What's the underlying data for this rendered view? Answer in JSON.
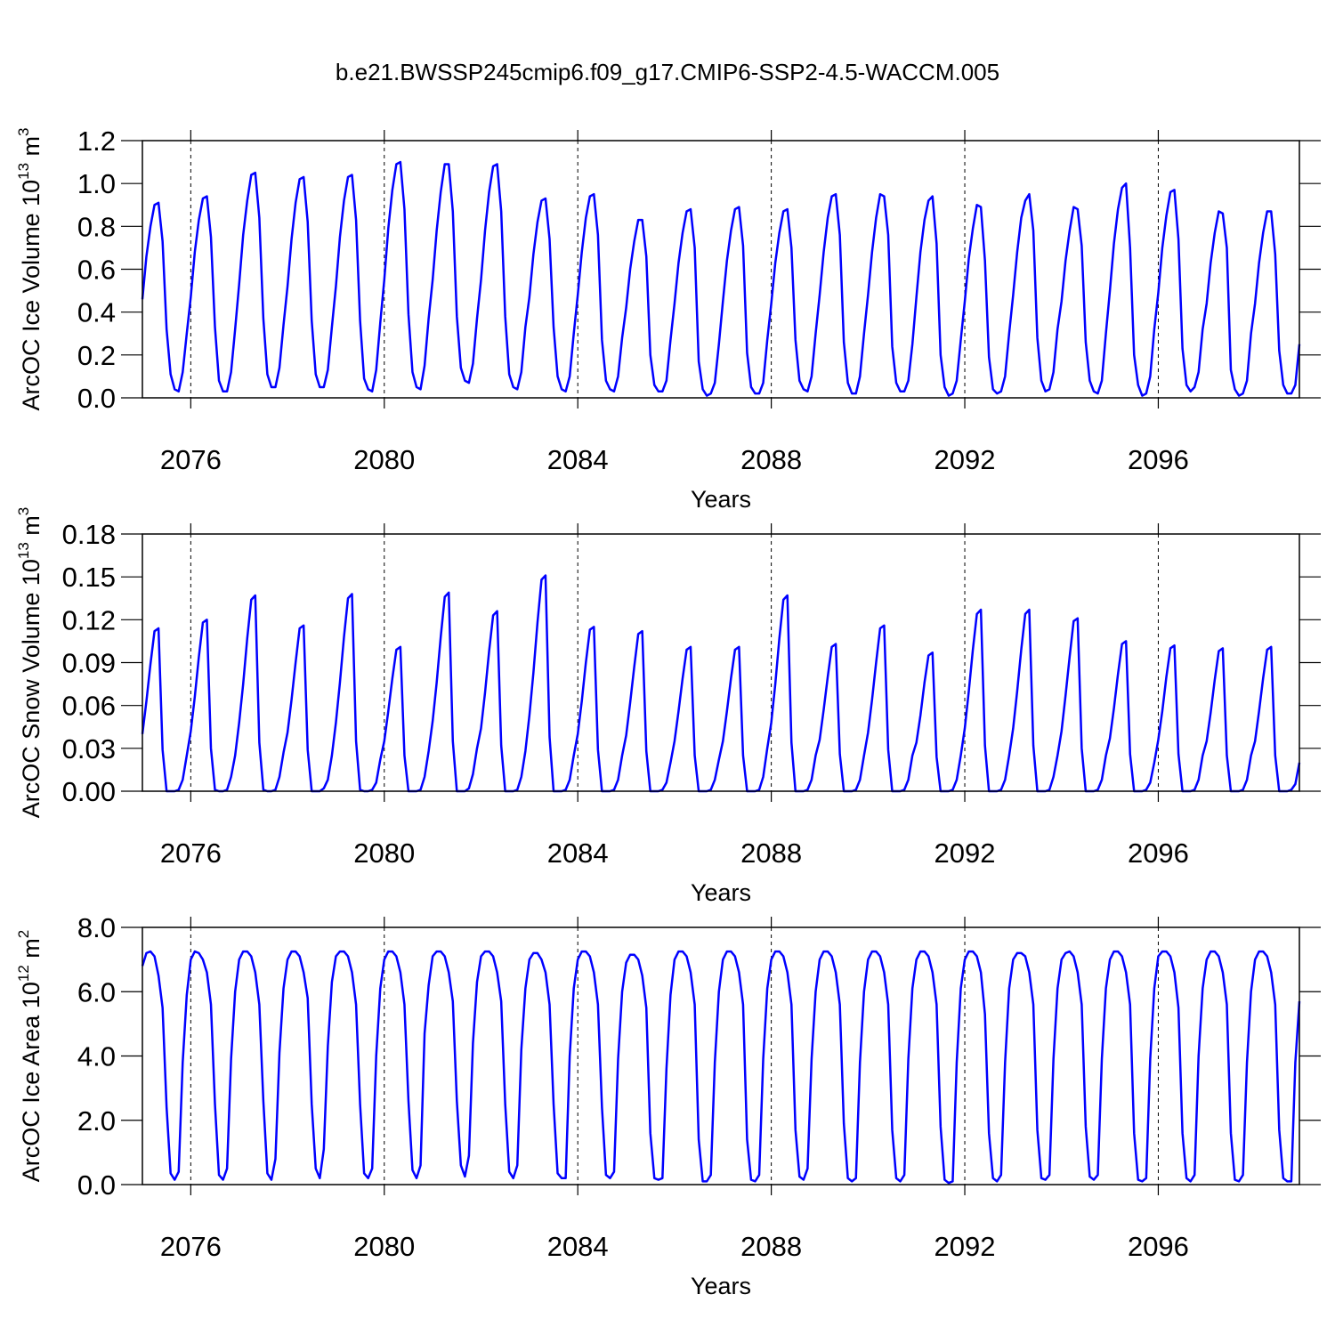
{
  "title": "b.e21.BWSSP245cmip6.f09_g17.CMIP6-SSP2-4.5-WACCM.005",
  "xlim": [
    2075,
    2098.917
  ],
  "xticks": [
    2076,
    2080,
    2084,
    2088,
    2092,
    2096
  ],
  "xlabel": "Years",
  "x": [
    2075,
    2075.083,
    2075.167,
    2075.25,
    2075.333,
    2075.417,
    2075.5,
    2075.583,
    2075.667,
    2075.75,
    2075.833,
    2075.917,
    2076,
    2076.083,
    2076.167,
    2076.25,
    2076.333,
    2076.417,
    2076.5,
    2076.583,
    2076.667,
    2076.75,
    2076.833,
    2076.917,
    2077,
    2077.083,
    2077.167,
    2077.25,
    2077.333,
    2077.417,
    2077.5,
    2077.583,
    2077.667,
    2077.75,
    2077.833,
    2077.917,
    2078,
    2078.083,
    2078.167,
    2078.25,
    2078.333,
    2078.417,
    2078.5,
    2078.583,
    2078.667,
    2078.75,
    2078.833,
    2078.917,
    2079,
    2079.083,
    2079.167,
    2079.25,
    2079.333,
    2079.417,
    2079.5,
    2079.583,
    2079.667,
    2079.75,
    2079.833,
    2079.917,
    2080,
    2080.083,
    2080.167,
    2080.25,
    2080.333,
    2080.417,
    2080.5,
    2080.583,
    2080.667,
    2080.75,
    2080.833,
    2080.917,
    2081,
    2081.083,
    2081.167,
    2081.25,
    2081.333,
    2081.417,
    2081.5,
    2081.583,
    2081.667,
    2081.75,
    2081.833,
    2081.917,
    2082,
    2082.083,
    2082.167,
    2082.25,
    2082.333,
    2082.417,
    2082.5,
    2082.583,
    2082.667,
    2082.75,
    2082.833,
    2082.917,
    2083,
    2083.083,
    2083.167,
    2083.25,
    2083.333,
    2083.417,
    2083.5,
    2083.583,
    2083.667,
    2083.75,
    2083.833,
    2083.917,
    2084,
    2084.083,
    2084.167,
    2084.25,
    2084.333,
    2084.417,
    2084.5,
    2084.583,
    2084.667,
    2084.75,
    2084.833,
    2084.917,
    2085,
    2085.083,
    2085.167,
    2085.25,
    2085.333,
    2085.417,
    2085.5,
    2085.583,
    2085.667,
    2085.75,
    2085.833,
    2085.917,
    2086,
    2086.083,
    2086.167,
    2086.25,
    2086.333,
    2086.417,
    2086.5,
    2086.583,
    2086.667,
    2086.75,
    2086.833,
    2086.917,
    2087,
    2087.083,
    2087.167,
    2087.25,
    2087.333,
    2087.417,
    2087.5,
    2087.583,
    2087.667,
    2087.75,
    2087.833,
    2087.917,
    2088,
    2088.083,
    2088.167,
    2088.25,
    2088.333,
    2088.417,
    2088.5,
    2088.583,
    2088.667,
    2088.75,
    2088.833,
    2088.917,
    2089,
    2089.083,
    2089.167,
    2089.25,
    2089.333,
    2089.417,
    2089.5,
    2089.583,
    2089.667,
    2089.75,
    2089.833,
    2089.917,
    2090,
    2090.083,
    2090.167,
    2090.25,
    2090.333,
    2090.417,
    2090.5,
    2090.583,
    2090.667,
    2090.75,
    2090.833,
    2090.917,
    2091,
    2091.083,
    2091.167,
    2091.25,
    2091.333,
    2091.417,
    2091.5,
    2091.583,
    2091.667,
    2091.75,
    2091.833,
    2091.917,
    2092,
    2092.083,
    2092.167,
    2092.25,
    2092.333,
    2092.417,
    2092.5,
    2092.583,
    2092.667,
    2092.75,
    2092.833,
    2092.917,
    2093,
    2093.083,
    2093.167,
    2093.25,
    2093.333,
    2093.417,
    2093.5,
    2093.583,
    2093.667,
    2093.75,
    2093.833,
    2093.917,
    2094,
    2094.083,
    2094.167,
    2094.25,
    2094.333,
    2094.417,
    2094.5,
    2094.583,
    2094.667,
    2094.75,
    2094.833,
    2094.917,
    2095,
    2095.083,
    2095.167,
    2095.25,
    2095.333,
    2095.417,
    2095.5,
    2095.583,
    2095.667,
    2095.75,
    2095.833,
    2095.917,
    2096,
    2096.083,
    2096.167,
    2096.25,
    2096.333,
    2096.417,
    2096.5,
    2096.583,
    2096.667,
    2096.75,
    2096.833,
    2096.917,
    2097,
    2097.083,
    2097.167,
    2097.25,
    2097.333,
    2097.417,
    2097.5,
    2097.583,
    2097.667,
    2097.75,
    2097.833,
    2097.917,
    2098,
    2098.083,
    2098.167,
    2098.25,
    2098.333,
    2098.417,
    2098.5,
    2098.583,
    2098.667,
    2098.75,
    2098.833,
    2098.917
  ],
  "chart_data": [
    {
      "type": "line",
      "color": "#0000ff",
      "ylabel": {
        "text": "ArcOC Ice Volume 10",
        "exp": "13",
        "unit": " m",
        "unit_exp": "3"
      },
      "ylim": [
        0,
        1.2
      ],
      "yticks": [
        {
          "value": 0,
          "label": "0.0"
        },
        {
          "value": 0.2,
          "label": "0.2"
        },
        {
          "value": 0.4,
          "label": "0.4"
        },
        {
          "value": 0.6,
          "label": "0.6"
        },
        {
          "value": 0.8,
          "label": "0.8"
        },
        {
          "value": 1,
          "label": "1.0"
        },
        {
          "value": 1.2,
          "label": "1.2"
        }
      ],
      "values": [
        0.46,
        0.66,
        0.8,
        0.9,
        0.91,
        0.73,
        0.32,
        0.11,
        0.04,
        0.03,
        0.12,
        0.3,
        0.47,
        0.68,
        0.83,
        0.93,
        0.94,
        0.75,
        0.33,
        0.08,
        0.03,
        0.03,
        0.12,
        0.32,
        0.53,
        0.76,
        0.92,
        1.04,
        1.05,
        0.84,
        0.37,
        0.11,
        0.05,
        0.05,
        0.14,
        0.34,
        0.52,
        0.74,
        0.91,
        1.02,
        1.03,
        0.82,
        0.36,
        0.11,
        0.05,
        0.05,
        0.13,
        0.33,
        0.52,
        0.75,
        0.92,
        1.03,
        1.04,
        0.83,
        0.36,
        0.09,
        0.04,
        0.03,
        0.13,
        0.35,
        0.55,
        0.79,
        0.97,
        1.09,
        1.1,
        0.88,
        0.39,
        0.12,
        0.05,
        0.04,
        0.15,
        0.37,
        0.55,
        0.78,
        0.96,
        1.09,
        1.09,
        0.87,
        0.38,
        0.14,
        0.08,
        0.07,
        0.16,
        0.37,
        0.55,
        0.78,
        0.96,
        1.08,
        1.09,
        0.87,
        0.38,
        0.11,
        0.05,
        0.04,
        0.12,
        0.33,
        0.47,
        0.67,
        0.82,
        0.92,
        0.93,
        0.74,
        0.33,
        0.1,
        0.04,
        0.03,
        0.1,
        0.3,
        0.48,
        0.68,
        0.84,
        0.94,
        0.95,
        0.76,
        0.27,
        0.08,
        0.04,
        0.03,
        0.1,
        0.28,
        0.42,
        0.6,
        0.73,
        0.83,
        0.83,
        0.66,
        0.2,
        0.06,
        0.03,
        0.03,
        0.08,
        0.27,
        0.44,
        0.63,
        0.77,
        0.87,
        0.88,
        0.7,
        0.17,
        0.04,
        0.01,
        0.02,
        0.07,
        0.25,
        0.45,
        0.64,
        0.78,
        0.88,
        0.89,
        0.71,
        0.21,
        0.05,
        0.02,
        0.02,
        0.07,
        0.27,
        0.44,
        0.63,
        0.77,
        0.87,
        0.88,
        0.7,
        0.27,
        0.08,
        0.04,
        0.03,
        0.1,
        0.3,
        0.48,
        0.68,
        0.84,
        0.94,
        0.95,
        0.76,
        0.26,
        0.07,
        0.02,
        0.02,
        0.1,
        0.3,
        0.48,
        0.68,
        0.84,
        0.95,
        0.94,
        0.76,
        0.24,
        0.07,
        0.03,
        0.03,
        0.08,
        0.25,
        0.47,
        0.68,
        0.83,
        0.92,
        0.94,
        0.72,
        0.2,
        0.05,
        0.01,
        0.02,
        0.08,
        0.27,
        0.45,
        0.65,
        0.79,
        0.9,
        0.89,
        0.64,
        0.19,
        0.04,
        0.02,
        0.03,
        0.1,
        0.3,
        0.48,
        0.68,
        0.84,
        0.92,
        0.95,
        0.78,
        0.28,
        0.08,
        0.03,
        0.04,
        0.12,
        0.32,
        0.45,
        0.64,
        0.78,
        0.89,
        0.88,
        0.71,
        0.26,
        0.08,
        0.03,
        0.02,
        0.08,
        0.3,
        0.5,
        0.72,
        0.88,
        0.98,
        1.0,
        0.7,
        0.2,
        0.06,
        0.01,
        0.02,
        0.1,
        0.32,
        0.49,
        0.7,
        0.85,
        0.96,
        0.97,
        0.74,
        0.23,
        0.06,
        0.03,
        0.05,
        0.12,
        0.32,
        0.44,
        0.63,
        0.77,
        0.87,
        0.86,
        0.7,
        0.13,
        0.04,
        0.01,
        0.02,
        0.08,
        0.3,
        0.44,
        0.63,
        0.77,
        0.87,
        0.87,
        0.67,
        0.22,
        0.06,
        0.02,
        0.02,
        0.06,
        0.25
      ]
    },
    {
      "type": "line",
      "color": "#0000ff",
      "ylabel": {
        "text": "ArcOC Snow Volume 10",
        "exp": "13",
        "unit": " m",
        "unit_exp": "3"
      },
      "ylim": [
        0,
        0.18
      ],
      "yticks": [
        {
          "value": 0,
          "label": "0.00"
        },
        {
          "value": 0.03,
          "label": "0.03"
        },
        {
          "value": 0.06,
          "label": "0.06"
        },
        {
          "value": 0.09,
          "label": "0.09"
        },
        {
          "value": 0.12,
          "label": "0.12"
        },
        {
          "value": 0.15,
          "label": "0.15"
        },
        {
          "value": 0.18,
          "label": "0.18"
        }
      ],
      "values": [
        0.04,
        0.063,
        0.089,
        0.112,
        0.114,
        0.029,
        0,
        0,
        0,
        0.001,
        0.008,
        0.025,
        0.042,
        0.066,
        0.094,
        0.118,
        0.12,
        0.03,
        0.001,
        0,
        0,
        0.001,
        0.01,
        0.025,
        0.048,
        0.075,
        0.107,
        0.134,
        0.137,
        0.034,
        0.001,
        0,
        0,
        0.001,
        0.01,
        0.027,
        0.041,
        0.064,
        0.09,
        0.114,
        0.116,
        0.029,
        0,
        0,
        0,
        0.002,
        0.008,
        0.025,
        0.048,
        0.076,
        0.108,
        0.135,
        0.138,
        0.035,
        0.001,
        0,
        0,
        0.001,
        0.006,
        0.022,
        0.035,
        0.056,
        0.079,
        0.099,
        0.101,
        0.025,
        0,
        0,
        0,
        0.001,
        0.01,
        0.028,
        0.049,
        0.076,
        0.108,
        0.136,
        0.139,
        0.035,
        0,
        0,
        0,
        0.002,
        0.012,
        0.03,
        0.044,
        0.069,
        0.098,
        0.123,
        0.126,
        0.032,
        0,
        0,
        0,
        0.001,
        0.01,
        0.028,
        0.053,
        0.083,
        0.118,
        0.148,
        0.151,
        0.038,
        0,
        0,
        0,
        0.001,
        0.008,
        0.025,
        0.04,
        0.063,
        0.09,
        0.113,
        0.115,
        0.029,
        0,
        0,
        0,
        0.001,
        0.008,
        0.025,
        0.039,
        0.062,
        0.087,
        0.11,
        0.112,
        0.028,
        0,
        0,
        0,
        0.001,
        0.006,
        0.02,
        0.035,
        0.056,
        0.079,
        0.099,
        0.101,
        0.025,
        0,
        0,
        0,
        0.001,
        0.008,
        0.022,
        0.035,
        0.056,
        0.079,
        0.099,
        0.101,
        0.025,
        0,
        0,
        0,
        0.001,
        0.01,
        0.03,
        0.048,
        0.075,
        0.107,
        0.134,
        0.137,
        0.034,
        0,
        0,
        0,
        0.001,
        0.008,
        0.025,
        0.036,
        0.057,
        0.08,
        0.101,
        0.103,
        0.026,
        0,
        0,
        0,
        0.001,
        0.008,
        0.025,
        0.041,
        0.064,
        0.09,
        0.114,
        0.116,
        0.029,
        0,
        0,
        0,
        0.001,
        0.008,
        0.025,
        0.034,
        0.053,
        0.076,
        0.095,
        0.097,
        0.024,
        0,
        0,
        0,
        0.001,
        0.008,
        0.025,
        0.044,
        0.07,
        0.099,
        0.124,
        0.127,
        0.032,
        0,
        0,
        0,
        0.001,
        0.008,
        0.025,
        0.044,
        0.07,
        0.099,
        0.124,
        0.127,
        0.032,
        0,
        0,
        0,
        0.001,
        0.01,
        0.025,
        0.042,
        0.067,
        0.094,
        0.119,
        0.121,
        0.03,
        0,
        0,
        0,
        0.001,
        0.008,
        0.025,
        0.037,
        0.058,
        0.082,
        0.103,
        0.105,
        0.026,
        0,
        0,
        0,
        0.001,
        0.006,
        0.02,
        0.036,
        0.056,
        0.08,
        0.1,
        0.102,
        0.026,
        0,
        0,
        0,
        0.001,
        0.008,
        0.025,
        0.035,
        0.055,
        0.078,
        0.098,
        0.1,
        0.025,
        0,
        0,
        0,
        0.001,
        0.008,
        0.025,
        0.035,
        0.056,
        0.079,
        0.099,
        0.101,
        0.025,
        0,
        0,
        0,
        0.001,
        0.005,
        0.02
      ]
    },
    {
      "type": "line",
      "color": "#0000ff",
      "ylabel": {
        "text": "ArcOC Ice Area 10",
        "exp": "12",
        "unit": " m",
        "unit_exp": "2"
      },
      "ylim": [
        0,
        8
      ],
      "yticks": [
        {
          "value": 0,
          "label": "0.0"
        },
        {
          "value": 2,
          "label": "2.0"
        },
        {
          "value": 4,
          "label": "4.0"
        },
        {
          "value": 6,
          "label": "6.0"
        },
        {
          "value": 8,
          "label": "8.0"
        }
      ],
      "values": [
        6.8,
        7.2,
        7.25,
        7.1,
        6.5,
        5.5,
        2.4,
        0.35,
        0.15,
        0.4,
        3.8,
        5.9,
        7.0,
        7.25,
        7.2,
        7.0,
        6.6,
        5.6,
        2.5,
        0.3,
        0.15,
        0.5,
        3.9,
        6.0,
        7.0,
        7.25,
        7.25,
        7.1,
        6.6,
        5.6,
        2.6,
        0.35,
        0.15,
        0.8,
        4.1,
        6.1,
        7.0,
        7.25,
        7.25,
        7.1,
        6.6,
        5.8,
        2.5,
        0.5,
        0.2,
        1.1,
        4.3,
        6.3,
        7.1,
        7.25,
        7.25,
        7.1,
        6.6,
        5.6,
        2.5,
        0.35,
        0.2,
        0.5,
        4.0,
        6.1,
        7.0,
        7.25,
        7.25,
        7.1,
        6.6,
        5.6,
        2.6,
        0.45,
        0.2,
        0.6,
        4.7,
        6.2,
        7.1,
        7.25,
        7.25,
        7.1,
        6.6,
        5.7,
        2.6,
        0.6,
        0.25,
        0.9,
        4.4,
        6.3,
        7.1,
        7.25,
        7.25,
        7.1,
        6.6,
        5.7,
        2.5,
        0.4,
        0.2,
        0.6,
        4.2,
        6.1,
        7.0,
        7.2,
        7.2,
        7.0,
        6.6,
        5.6,
        2.5,
        0.35,
        0.2,
        0.2,
        4.0,
        6.1,
        7.0,
        7.25,
        7.25,
        7.1,
        6.6,
        5.6,
        2.4,
        0.3,
        0.2,
        0.4,
        3.9,
        6.0,
        6.9,
        7.15,
        7.15,
        7.0,
        6.5,
        5.5,
        1.6,
        0.2,
        0.15,
        0.2,
        3.6,
        5.9,
        7.0,
        7.25,
        7.25,
        7.1,
        6.6,
        5.6,
        1.4,
        0.1,
        0.1,
        0.3,
        3.8,
        6.0,
        7.0,
        7.25,
        7.25,
        7.1,
        6.6,
        5.6,
        1.4,
        0.15,
        0.1,
        0.3,
        3.9,
        6.1,
        7.0,
        7.25,
        7.25,
        7.1,
        6.6,
        5.6,
        1.7,
        0.25,
        0.15,
        0.5,
        3.9,
        6.0,
        7.0,
        7.25,
        7.25,
        7.1,
        6.6,
        5.6,
        1.9,
        0.2,
        0.1,
        0.2,
        3.8,
        6.0,
        7.0,
        7.25,
        7.25,
        7.1,
        6.6,
        5.6,
        1.7,
        0.2,
        0.1,
        0.3,
        3.9,
        6.1,
        7.0,
        7.25,
        7.25,
        7.1,
        6.6,
        5.6,
        1.8,
        0.15,
        0.05,
        0.1,
        3.8,
        6.1,
        7.0,
        7.25,
        7.25,
        7.1,
        6.6,
        5.3,
        1.6,
        0.2,
        0.1,
        0.3,
        3.8,
        6.1,
        7.0,
        7.2,
        7.2,
        7.1,
        6.6,
        5.6,
        1.7,
        0.2,
        0.15,
        0.3,
        3.9,
        6.1,
        7.0,
        7.2,
        7.25,
        7.1,
        6.6,
        5.6,
        1.8,
        0.25,
        0.15,
        0.3,
        3.9,
        6.1,
        7.0,
        7.25,
        7.25,
        7.1,
        6.6,
        5.6,
        1.6,
        0.15,
        0.1,
        0.2,
        3.9,
        6.1,
        7.1,
        7.25,
        7.25,
        7.1,
        6.6,
        5.5,
        1.6,
        0.2,
        0.1,
        0.3,
        4.0,
        6.1,
        7.0,
        7.25,
        7.25,
        7.1,
        6.6,
        5.6,
        1.6,
        0.15,
        0.1,
        0.3,
        3.8,
        6.0,
        7.0,
        7.25,
        7.25,
        7.1,
        6.6,
        5.6,
        1.7,
        0.2,
        0.1,
        0.1,
        3.8,
        5.7
      ]
    }
  ]
}
